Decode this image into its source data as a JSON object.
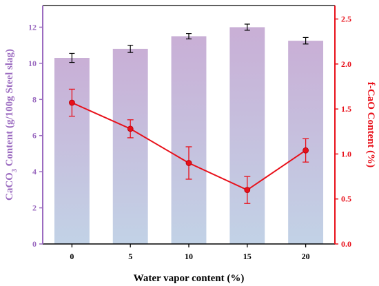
{
  "chart_data": {
    "type": "bar",
    "categories": [
      "0",
      "5",
      "10",
      "15",
      "20"
    ],
    "xlabel": "Water vapor content (%)",
    "ylabel_left_parts": [
      "CaCO",
      "3",
      " Content (g/100g Steel slag)"
    ],
    "ylabel_right": "f-CaO Content (%)",
    "left_axis": {
      "ylim": [
        0,
        13.2
      ],
      "ticks": [
        0,
        2,
        4,
        6,
        8,
        10,
        12
      ],
      "tick_labels": [
        "0",
        "2",
        "4",
        "6",
        "8",
        "10",
        "12"
      ],
      "color": "#9b6bc0"
    },
    "right_axis": {
      "ylim": [
        0,
        2.65
      ],
      "ticks": [
        0.0,
        0.5,
        1.0,
        1.5,
        2.0,
        2.5
      ],
      "tick_labels": [
        "0.0",
        "0.5",
        "1.0",
        "1.5",
        "2.0",
        "2.5"
      ],
      "color": "#e8101a"
    },
    "series": [
      {
        "kind": "bar",
        "axis": "left",
        "values": [
          10.3,
          10.8,
          11.5,
          12.0,
          11.25
        ],
        "errors": [
          0.25,
          0.2,
          0.15,
          0.17,
          0.18
        ],
        "gradient_top": "#c9afd6",
        "gradient_bottom": "#c2d2e6"
      },
      {
        "kind": "line",
        "axis": "right",
        "values": [
          1.57,
          1.28,
          0.9,
          0.6,
          1.04
        ],
        "errors": [
          0.15,
          0.1,
          0.18,
          0.15,
          0.13
        ],
        "color": "#e8101a"
      }
    ],
    "grid": false
  }
}
